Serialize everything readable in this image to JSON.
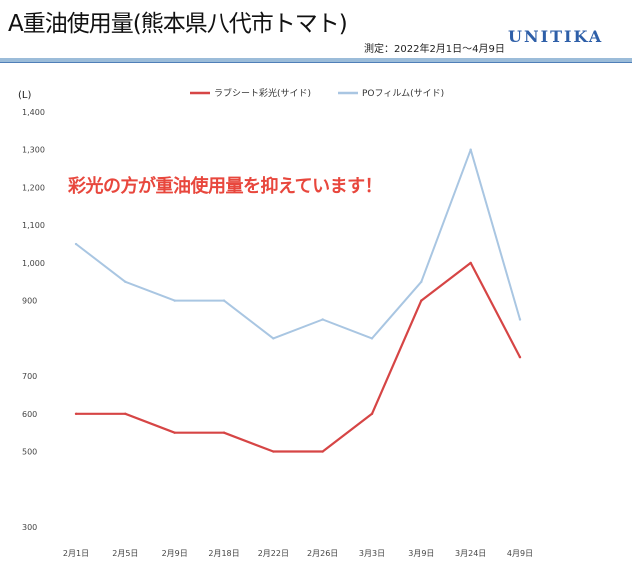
{
  "header": {
    "title": "A重油使用量(熊本県八代市トマト)",
    "measurement": "測定：2022年2月1日～4月9日",
    "logo": "UNITIKA"
  },
  "callout": "彩光の方が重油使用量を抑えています！",
  "colors": {
    "red_series": "#d64545",
    "blue_series": "#a9c6e2",
    "callout": "#e8473d"
  },
  "chart_data": {
    "type": "line",
    "ylabel": "(L)",
    "ylim": [
      300,
      1400
    ],
    "yticks": [
      300,
      400,
      500,
      600,
      700,
      800,
      900,
      1000,
      1100,
      1200,
      1300,
      1400
    ],
    "ytick_labels": [
      "300",
      "",
      "500",
      "600",
      "700",
      "",
      "900",
      "1,000",
      "1,100",
      "1,200",
      "1,300",
      "1,400"
    ],
    "categories": [
      "2月1日",
      "2月5日",
      "2月9日",
      "2月18日",
      "2月22日",
      "2月26日",
      "3月3日",
      "3月9日",
      "3月24日",
      "4月9日"
    ],
    "legend_position": "top",
    "series": [
      {
        "name": "ラブシート彩光(サイド)",
        "color": "#d64545",
        "values": [
          600,
          600,
          550,
          550,
          500,
          500,
          600,
          900,
          1000,
          750
        ]
      },
      {
        "name": "POフィルム(サイド)",
        "color": "#a9c6e2",
        "values": [
          1050,
          950,
          900,
          900,
          800,
          850,
          800,
          950,
          1300,
          850
        ]
      }
    ]
  }
}
